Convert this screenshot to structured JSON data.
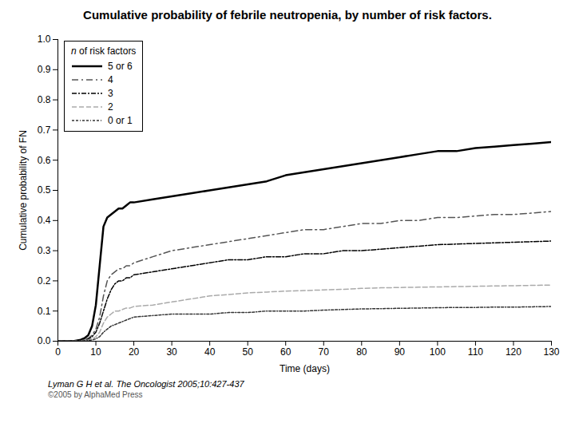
{
  "chart_data": {
    "type": "line",
    "title": "Cumulative probability of febrile neutropenia, by number of risk factors.",
    "xlabel": "Time (days)",
    "ylabel": "Cumulative probability of FN",
    "legend_title": "n of risk factors",
    "legend": "top-left",
    "grid": false,
    "annotations": [
      "Lyman G H et al. The Oncologist 2005;10:427-437",
      "©2005 by AlphaMed Press"
    ],
    "x": [
      0,
      2,
      4,
      6,
      7,
      8,
      9,
      10,
      11,
      12,
      13,
      14,
      15,
      16,
      17,
      18,
      19,
      20,
      25,
      30,
      35,
      40,
      45,
      50,
      55,
      60,
      65,
      70,
      75,
      80,
      85,
      90,
      95,
      100,
      105,
      110,
      115,
      120,
      125,
      130
    ],
    "series": [
      {
        "name": "5 or 6",
        "color": "#000000",
        "line_style": "solid",
        "values": [
          0,
          0,
          0,
          0.005,
          0.01,
          0.02,
          0.05,
          0.12,
          0.25,
          0.38,
          0.41,
          0.42,
          0.43,
          0.44,
          0.44,
          0.45,
          0.46,
          0.46,
          0.47,
          0.48,
          0.49,
          0.5,
          0.51,
          0.52,
          0.53,
          0.55,
          0.56,
          0.57,
          0.58,
          0.59,
          0.6,
          0.61,
          0.62,
          0.63,
          0.63,
          0.64,
          0.645,
          0.65,
          0.655,
          0.66
        ]
      },
      {
        "name": "4",
        "color": "#555555",
        "line_style": "longdashdot",
        "values": [
          0,
          0,
          0,
          0.002,
          0.005,
          0.01,
          0.02,
          0.04,
          0.08,
          0.15,
          0.2,
          0.22,
          0.23,
          0.24,
          0.24,
          0.25,
          0.25,
          0.26,
          0.28,
          0.3,
          0.31,
          0.32,
          0.33,
          0.34,
          0.35,
          0.36,
          0.37,
          0.37,
          0.38,
          0.39,
          0.39,
          0.4,
          0.4,
          0.41,
          0.41,
          0.415,
          0.42,
          0.42,
          0.425,
          0.43
        ]
      },
      {
        "name": "3",
        "color": "#000000",
        "line_style": "dashdot",
        "values": [
          0,
          0,
          0,
          0.001,
          0.003,
          0.007,
          0.015,
          0.03,
          0.06,
          0.1,
          0.14,
          0.17,
          0.19,
          0.2,
          0.2,
          0.21,
          0.21,
          0.22,
          0.23,
          0.24,
          0.25,
          0.26,
          0.27,
          0.27,
          0.28,
          0.28,
          0.29,
          0.29,
          0.3,
          0.3,
          0.305,
          0.31,
          0.315,
          0.32,
          0.322,
          0.324,
          0.326,
          0.328,
          0.33,
          0.332
        ]
      },
      {
        "name": "2",
        "color": "#aaaaaa",
        "line_style": "dashed",
        "values": [
          0,
          0,
          0,
          0.001,
          0.002,
          0.004,
          0.008,
          0.015,
          0.03,
          0.06,
          0.08,
          0.09,
          0.1,
          0.1,
          0.105,
          0.11,
          0.11,
          0.115,
          0.12,
          0.13,
          0.14,
          0.15,
          0.155,
          0.16,
          0.163,
          0.166,
          0.168,
          0.17,
          0.172,
          0.175,
          0.177,
          0.178,
          0.179,
          0.18,
          0.181,
          0.182,
          0.183,
          0.184,
          0.185,
          0.186
        ]
      },
      {
        "name": "0 or 1",
        "color": "#333333",
        "line_style": "dashdashdot",
        "values": [
          0,
          0,
          0,
          0.001,
          0.001,
          0.002,
          0.004,
          0.008,
          0.015,
          0.03,
          0.04,
          0.05,
          0.055,
          0.06,
          0.065,
          0.07,
          0.075,
          0.08,
          0.085,
          0.09,
          0.09,
          0.09,
          0.095,
          0.095,
          0.1,
          0.1,
          0.1,
          0.103,
          0.105,
          0.107,
          0.108,
          0.109,
          0.11,
          0.111,
          0.112,
          0.112,
          0.113,
          0.113,
          0.114,
          0.115
        ]
      }
    ],
    "xlim": [
      0,
      130
    ],
    "ylim": [
      0,
      1.0
    ],
    "xticks": [
      0,
      10,
      20,
      30,
      40,
      50,
      60,
      70,
      80,
      90,
      100,
      110,
      120,
      130
    ],
    "yticks": [
      {
        "value": 0,
        "label": "0.0"
      },
      0.1,
      0.2,
      0.3,
      0.4,
      0.5,
      0.6,
      0.7,
      0.8,
      0.9,
      {
        "value": 1,
        "label": "1.0"
      }
    ]
  }
}
